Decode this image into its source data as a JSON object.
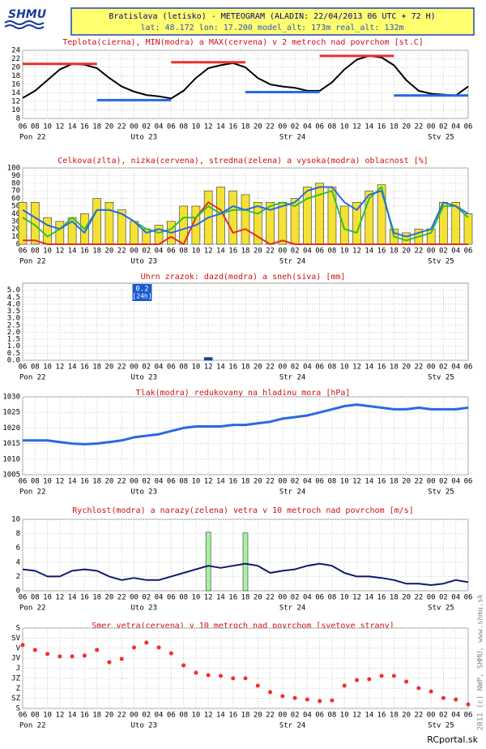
{
  "header": {
    "logo": "SHMU",
    "title": "Bratislava (letisko) - METEOGRAM (ALADIN: 22/04/2013 06 UTC + 72 H)",
    "subtitle": "lat: 48.172  lon: 17.200  model_alt: 173m  real_alt: 132m"
  },
  "time_axis": {
    "categories": [
      "06",
      "08",
      "10",
      "12",
      "14",
      "16",
      "18",
      "20",
      "22",
      "00",
      "02",
      "04",
      "06",
      "08",
      "10",
      "12",
      "14",
      "16",
      "18",
      "20",
      "22",
      "00",
      "02",
      "04",
      "06",
      "08",
      "10",
      "12",
      "14",
      "16",
      "18",
      "20",
      "22",
      "00",
      "02",
      "04",
      "06"
    ],
    "day_labels": [
      "Pon 22",
      null,
      null,
      null,
      null,
      null,
      null,
      null,
      null,
      "Uto 23",
      null,
      null,
      null,
      null,
      null,
      null,
      null,
      null,
      null,
      null,
      null,
      "Str 24",
      null,
      null,
      null,
      null,
      null,
      null,
      null,
      null,
      null,
      null,
      null,
      "Stv 25",
      null,
      null,
      null
    ]
  },
  "chart_data": [
    {
      "type": "line",
      "title": "Teplota(cierna), MIN(modra) a MAX(cervena) v 2 metroch nad povrchom [st.C]",
      "ylim": [
        8,
        24
      ],
      "yticks": [
        8,
        10,
        12,
        14,
        16,
        18,
        20,
        22,
        24
      ],
      "grid": true,
      "series": [
        {
          "color": "#000000",
          "style": "line",
          "values": [
            12.8,
            14.5,
            17,
            19.5,
            20.8,
            20.6,
            19.8,
            17.5,
            15.5,
            14.3,
            13.5,
            13.2,
            12.7,
            14.5,
            17.5,
            19.8,
            20.5,
            21.0,
            20.0,
            17.5,
            16.0,
            15.5,
            15.2,
            14.5,
            14.5,
            16.5,
            19.5,
            21.8,
            22.7,
            22.3,
            20.5,
            17.0,
            14.5,
            13.8,
            13.6,
            13.4,
            15.5
          ]
        }
      ],
      "max_values": [
        20.8,
        21.2,
        22.7
      ],
      "max_color": "#e83030",
      "min_values": [
        12.3,
        14.2,
        13.4
      ],
      "min_color": "#2a6ae0"
    },
    {
      "type": "bar",
      "title": "Celkova(zlta), nizka(cervena), stredna(zelena) a vysoka(modra) oblacnost [%]",
      "ylim": [
        0,
        100
      ],
      "yticks": [
        0,
        10,
        20,
        30,
        40,
        50,
        60,
        70,
        80,
        90,
        100
      ],
      "grid": true,
      "series": [
        {
          "color": "#f4e233",
          "style": "bar",
          "values": [
            55,
            55,
            35,
            30,
            35,
            40,
            60,
            55,
            45,
            30,
            20,
            25,
            30,
            50,
            50,
            70,
            75,
            70,
            65,
            55,
            55,
            55,
            60,
            75,
            80,
            75,
            50,
            55,
            70,
            78,
            20,
            15,
            20,
            20,
            55,
            55,
            40
          ]
        },
        {
          "color": "#e03020",
          "style": "line",
          "values": [
            5,
            5,
            0,
            0,
            0,
            0,
            0,
            0,
            0,
            0,
            0,
            0,
            10,
            0,
            35,
            55,
            45,
            15,
            20,
            10,
            0,
            5,
            0,
            0,
            0,
            0,
            0,
            0,
            0,
            0,
            0,
            0,
            0,
            0,
            0,
            0,
            0
          ]
        },
        {
          "color": "#30c030",
          "style": "line",
          "values": [
            35,
            25,
            10,
            20,
            35,
            20,
            45,
            45,
            40,
            30,
            20,
            15,
            20,
            35,
            35,
            50,
            40,
            45,
            45,
            40,
            50,
            55,
            50,
            60,
            65,
            70,
            20,
            15,
            60,
            75,
            10,
            5,
            10,
            15,
            50,
            50,
            35
          ]
        },
        {
          "color": "#2a6ae0",
          "style": "line",
          "values": [
            45,
            35,
            25,
            20,
            30,
            15,
            45,
            45,
            40,
            30,
            15,
            20,
            15,
            20,
            25,
            35,
            40,
            50,
            45,
            50,
            45,
            50,
            55,
            70,
            75,
            75,
            55,
            45,
            65,
            70,
            15,
            10,
            15,
            20,
            55,
            50,
            40
          ]
        }
      ]
    },
    {
      "type": "bar",
      "title": "Uhrn zrazok: dazd(modra) a sneh(siva) [mm]",
      "ylim": [
        0,
        5.5
      ],
      "yticks": [
        {
          "value": 0,
          "label": "0.0"
        },
        0.5,
        {
          "value": 1,
          "label": "1.0"
        },
        1.5,
        {
          "value": 2,
          "label": "2.0"
        },
        2.5,
        {
          "value": 3,
          "label": "3.0"
        },
        3.5,
        {
          "value": 4,
          "label": "4.0"
        },
        4.5,
        {
          "value": 5,
          "label": "5.0"
        }
      ],
      "grid": true,
      "series": [
        {
          "color": "#1a3aa0",
          "style": "bar",
          "values": [
            0,
            0,
            0,
            0,
            0,
            0,
            0,
            0,
            0,
            0,
            0,
            0,
            0,
            0,
            0,
            0.2,
            0,
            0,
            0,
            0,
            0,
            0,
            0,
            0,
            0,
            0,
            0,
            0,
            0,
            0,
            0,
            0,
            0,
            0,
            0,
            0,
            0
          ]
        }
      ],
      "annotation": {
        "value": 0.2,
        "note": "[24h]",
        "color": "#1a5ad0"
      }
    },
    {
      "type": "line",
      "title": "Tlak(modra) redukovany na hladinu mora [hPa]",
      "ylim": [
        1005,
        1030
      ],
      "yticks": [
        1005,
        1010,
        1015,
        1020,
        1025,
        1030
      ],
      "grid": true,
      "series": [
        {
          "color": "#2a6ae0",
          "style": "line",
          "values": [
            1016,
            1016,
            1016,
            1015.5,
            1015,
            1014.8,
            1015,
            1015.5,
            1016,
            1017,
            1017.5,
            1018,
            1019,
            1020,
            1020.5,
            1020.5,
            1020.5,
            1021,
            1021,
            1021.5,
            1022,
            1023,
            1023.5,
            1024,
            1025,
            1026,
            1027,
            1027.5,
            1027,
            1026.5,
            1026,
            1026,
            1026.5,
            1026,
            1026,
            1026,
            1026.5
          ]
        }
      ]
    },
    {
      "type": "line",
      "title": "Rychlost(modra) a narazy(zelena) vetra v 10 metroch nad povrchom [m/s]",
      "ylim": [
        0,
        10
      ],
      "yticks": [
        0,
        2,
        4,
        6,
        8,
        10
      ],
      "grid": true,
      "series": [
        {
          "color": "#a8f0a0",
          "style": "bar",
          "values": [
            null,
            null,
            null,
            null,
            null,
            null,
            null,
            null,
            null,
            null,
            null,
            null,
            null,
            null,
            null,
            8.2,
            null,
            null,
            8.1,
            null,
            null,
            null,
            null,
            null,
            null,
            null,
            null,
            null,
            null,
            null,
            null,
            null,
            null,
            null,
            null,
            null,
            null
          ]
        },
        {
          "color": "#101870",
          "style": "line",
          "values": [
            3,
            2.8,
            2,
            2,
            2.8,
            3,
            2.8,
            2,
            1.5,
            1.8,
            1.5,
            1.5,
            2,
            2.5,
            3,
            3.5,
            3.2,
            3.5,
            3.8,
            3.5,
            2.5,
            2.8,
            3,
            3.5,
            3.8,
            3.5,
            2.5,
            2,
            2,
            1.8,
            1.5,
            1,
            1,
            0.8,
            1,
            1.5,
            1.2
          ]
        }
      ]
    },
    {
      "type": "scatter",
      "title": "Smer vetra(cervena) v 10 metroch nad povrchom [svetove strany]",
      "ylim": [
        360,
        0
      ],
      "yticks": [
        {
          "value": 0,
          "label": "S"
        },
        {
          "value": 45,
          "label": "SV"
        },
        {
          "value": 90,
          "label": "V"
        },
        {
          "value": 135,
          "label": "JV"
        },
        {
          "value": 180,
          "label": "J"
        },
        {
          "value": 225,
          "label": "JZ"
        },
        {
          "value": 270,
          "label": "Z"
        },
        {
          "value": 315,
          "label": "SZ"
        },
        {
          "value": 360,
          "label": "S"
        }
      ],
      "grid": true,
      "series": [
        {
          "color": "#f03030",
          "style": "dots",
          "values": [
            76,
            98,
            116,
            127,
            127,
            123,
            98,
            153,
            138,
            87,
            65,
            87,
            113,
            167,
            200,
            211,
            214,
            225,
            225,
            258,
            287,
            305,
            313,
            320,
            327,
            324,
            258,
            233,
            229,
            214,
            214,
            240,
            269,
            284,
            313,
            320,
            342
          ]
        }
      ]
    }
  ],
  "footer": {
    "side_note": "2011 (c) NWP, SHMU, www.shmu.sk",
    "credit": "RCportal.sk"
  }
}
